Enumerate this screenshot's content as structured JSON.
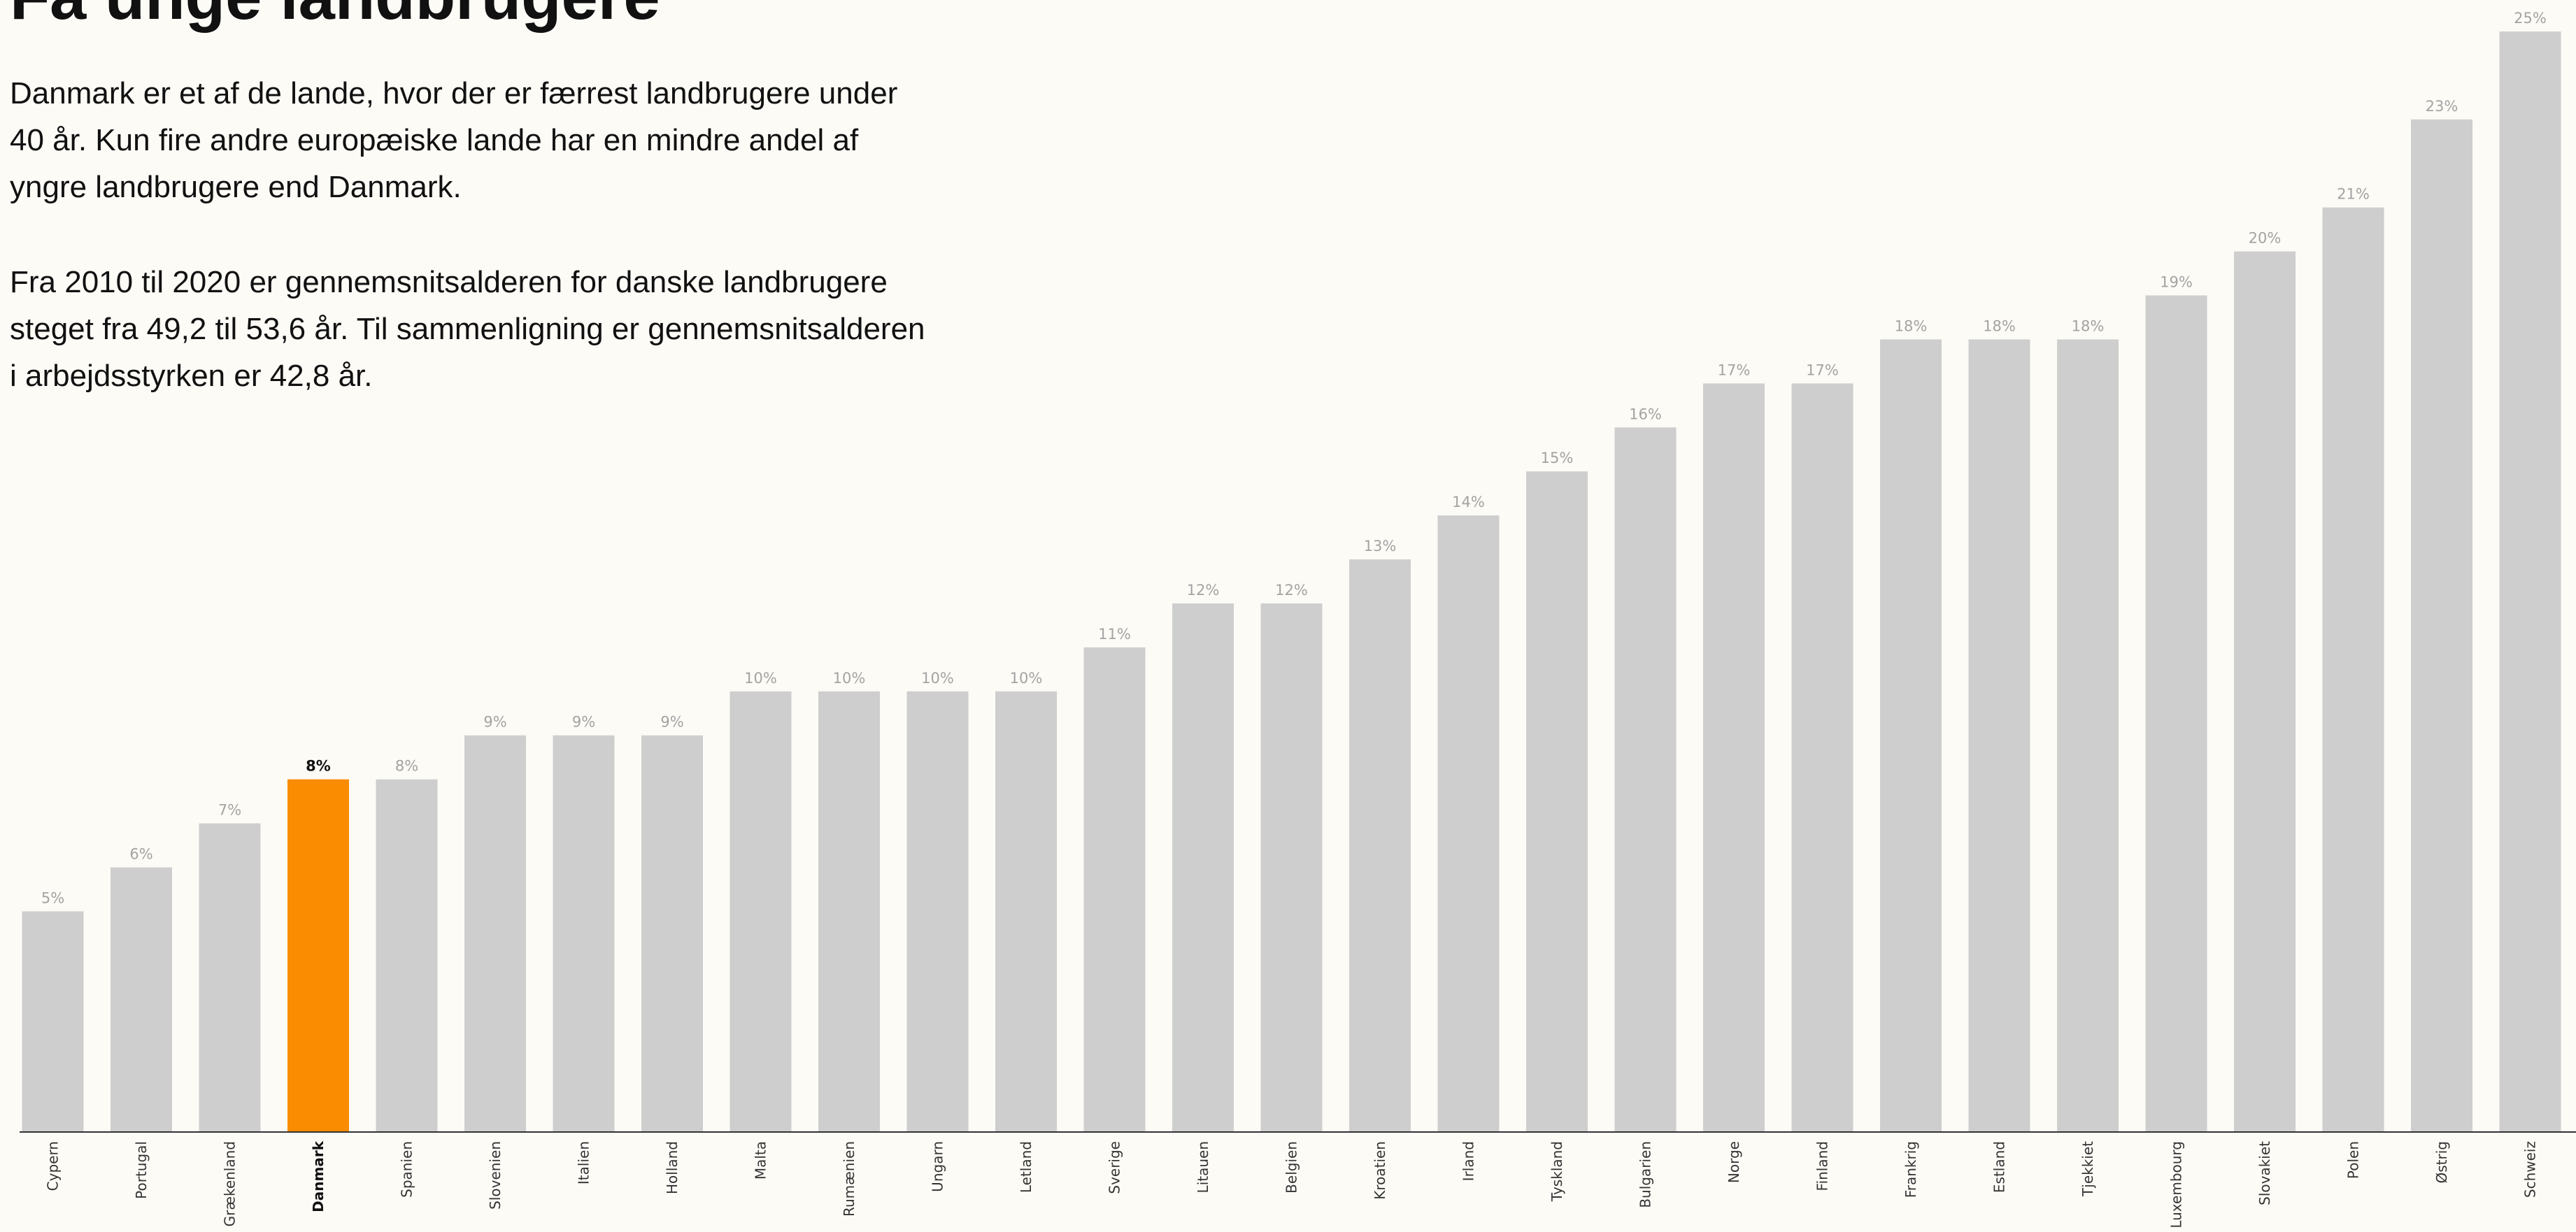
{
  "page": {
    "title": "Få unge landbrugere",
    "paragraphs": [
      "Danmark er et af de lande, hvor der er færrest landbrugere under 40 år. Kun fire andre europæiske lande har en mindre andel af yngre landbrugere end Danmark.",
      "Fra 2010 til 2020 er gennemsnitsalderen for danske landbrugere steget fra 49,2 til 53,6 år. Til sammenligning er gennemsnitsalderen i arbejdsstyrken er 42,8 år."
    ]
  },
  "chart_data": {
    "type": "bar",
    "categories": [
      "Cypern",
      "Portugal",
      "Grækenland",
      "Danmark",
      "Spanien",
      "Slovenien",
      "Italien",
      "Holland",
      "Malta",
      "Rumænien",
      "Ungarn",
      "Letland",
      "Sverige",
      "Litauen",
      "Belgien",
      "Kroatien",
      "Irland",
      "Tyskland",
      "Bulgarien",
      "Norge",
      "Finland",
      "Frankrig",
      "Estland",
      "Tjekkiet",
      "Luxembourg",
      "Slovakiet",
      "Polen",
      "Østrig",
      "Schweiz"
    ],
    "values": [
      5,
      6,
      7,
      8,
      8,
      9,
      9,
      9,
      10,
      10,
      10,
      10,
      11,
      12,
      12,
      13,
      14,
      15,
      16,
      17,
      17,
      18,
      18,
      18,
      19,
      20,
      21,
      23,
      25
    ],
    "value_labels": [
      "5%",
      "6%",
      "7%",
      "8%",
      "8%",
      "9%",
      "9%",
      "9%",
      "10%",
      "10%",
      "10%",
      "10%",
      "11%",
      "12%",
      "12%",
      "13%",
      "14%",
      "15%",
      "16%",
      "17%",
      "17%",
      "18%",
      "18%",
      "18%",
      "19%",
      "20%",
      "21%",
      "23%",
      "25%"
    ],
    "highlight": "Danmark",
    "ylim": [
      0,
      25
    ],
    "grid": false,
    "legend": "none",
    "colors": {
      "bar": "#cecece",
      "highlight": "#f98c00",
      "axis": "#333333",
      "background": "#fdfbf6"
    }
  }
}
